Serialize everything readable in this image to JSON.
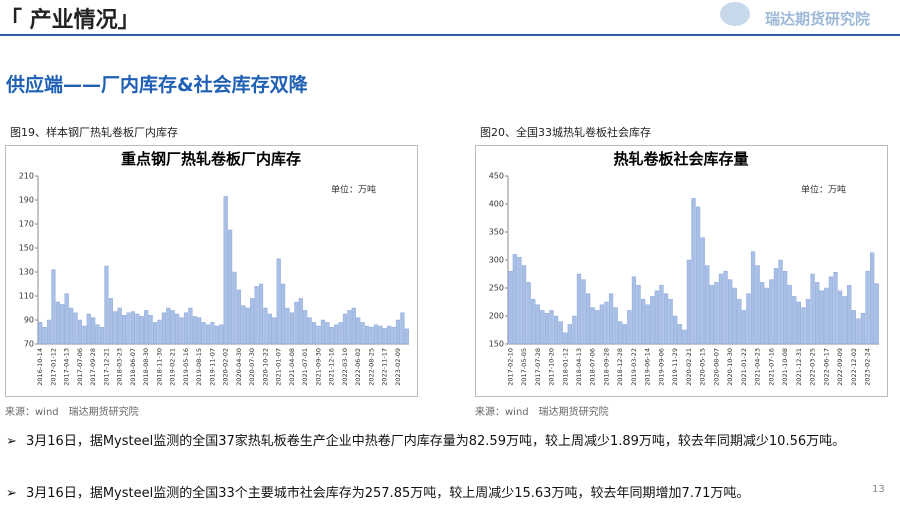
{
  "header": {
    "title": "「 产业情况」",
    "logo": "瑞达期货研究院",
    "subtitle": "供应端——厂内库存&社会库存双降",
    "page": "13"
  },
  "bullets": [
    "3月16日，据Mysteel监测的全国37家热轧板卷生产企业中热卷厂内库存量为82.59万吨，较上周减少1.89万吨，较去年同期减少10.56万吨。",
    "3月16日，据Mysteel监测的全国33个主要城市社会库存为257.85万吨，较上周减少15.63万吨，较去年同期增加7.71万吨。"
  ],
  "chart_data": [
    {
      "type": "bar",
      "caption": "图19、样本钢厂热轧卷板厂内库存",
      "title": "重点钢厂热轧卷板厂内库存",
      "unit": "单位：万吨",
      "source": "来源：wind　瑞达期货研究院",
      "color": "#a9bfe6",
      "categories": [
        "2016-10-14",
        null,
        null,
        "2017-01-12",
        null,
        null,
        "2017-04-13",
        null,
        null,
        "2017-07-06",
        null,
        null,
        "2017-09-28",
        null,
        null,
        "2017-12-21",
        null,
        null,
        "2018-03-23",
        null,
        null,
        "2018-06-07",
        null,
        null,
        "2018-08-30",
        null,
        null,
        "2018-11-30",
        null,
        null,
        "2019-02-21",
        null,
        null,
        "2019-05-16",
        null,
        null,
        "2019-08-15",
        null,
        null,
        "2019-11-07",
        null,
        null,
        "2020-02-02",
        null,
        null,
        "2020-04-30",
        null,
        null,
        "2020-07-30",
        null,
        null,
        "2020-10-22",
        null,
        null,
        "2021-01-07",
        null,
        null,
        "2021-04-08",
        null,
        null,
        "2021-07-01",
        null,
        null,
        "2021-09-30",
        null,
        null,
        "2021-12-16",
        null,
        null,
        "2022-03-10",
        null,
        null,
        "2022-06-02",
        null,
        null,
        "2022-08-25",
        null,
        null,
        "2022-11-17",
        null,
        null,
        "2023-02-09",
        null,
        null
      ],
      "values": [
        88,
        84,
        90,
        132,
        105,
        103,
        112,
        100,
        96,
        90,
        85,
        95,
        92,
        86,
        84,
        135,
        108,
        97,
        100,
        94,
        96,
        97,
        95,
        93,
        98,
        94,
        88,
        90,
        96,
        100,
        98,
        95,
        92,
        96,
        100,
        93,
        92,
        88,
        86,
        88,
        85,
        86,
        193,
        165,
        130,
        115,
        102,
        100,
        108,
        118,
        120,
        100,
        95,
        92,
        141,
        120,
        100,
        96,
        105,
        108,
        98,
        92,
        88,
        85,
        90,
        88,
        84,
        86,
        88,
        95,
        98,
        100,
        92,
        88,
        85,
        84,
        86,
        85,
        83,
        85,
        84,
        90,
        96,
        82.59
      ],
      "ylim": [
        70,
        210
      ],
      "yticks": [
        70,
        90,
        110,
        130,
        150,
        170,
        190,
        210
      ]
    },
    {
      "type": "bar",
      "caption": "图20、全国33城热轧卷板社会库存",
      "title": "热轧卷板社会库存量",
      "unit": "单位：万吨",
      "source": "来源：wind　瑞达期货研究院",
      "color": "#a9bfe6",
      "categories": [
        "2017-02-10",
        null,
        null,
        "2017-05-05",
        null,
        null,
        "2017-07-28",
        null,
        null,
        "2017-10-20",
        null,
        null,
        "2018-01-12",
        null,
        null,
        "2018-04-13",
        null,
        null,
        "2018-07-06",
        null,
        null,
        "2018-09-28",
        null,
        null,
        "2018-12-28",
        null,
        null,
        "2019-03-22",
        null,
        null,
        "2019-06-14",
        null,
        null,
        "2019-09-06",
        null,
        null,
        "2019-11-29",
        null,
        null,
        "2020-02-21",
        null,
        null,
        "2020-05-15",
        null,
        null,
        "2020-08-07",
        null,
        null,
        "2020-10-30",
        null,
        null,
        "2021-01-22",
        null,
        null,
        "2021-04-23",
        null,
        null,
        "2021-07-16",
        null,
        null,
        "2021-10-08",
        null,
        null,
        "2021-12-31",
        null,
        null,
        "2022-03-25",
        null,
        null,
        "2022-06-17",
        null,
        null,
        "2022-09-09",
        null,
        null,
        "2022-12-02",
        null,
        null,
        "2023-02-24",
        null,
        null
      ],
      "values": [
        280,
        310,
        305,
        290,
        260,
        230,
        220,
        210,
        205,
        210,
        200,
        190,
        170,
        185,
        200,
        275,
        265,
        240,
        215,
        210,
        220,
        225,
        240,
        215,
        190,
        185,
        210,
        270,
        255,
        230,
        220,
        235,
        245,
        255,
        240,
        230,
        200,
        185,
        175,
        300,
        410,
        395,
        340,
        290,
        255,
        260,
        275,
        280,
        265,
        250,
        230,
        210,
        240,
        315,
        290,
        260,
        250,
        265,
        285,
        300,
        280,
        255,
        235,
        225,
        215,
        230,
        275,
        260,
        245,
        250,
        270,
        278,
        245,
        235,
        255,
        210,
        195,
        205,
        280,
        313,
        257.85
      ],
      "ylim": [
        150,
        450
      ],
      "yticks": [
        150,
        200,
        250,
        300,
        350,
        400,
        450
      ]
    }
  ]
}
